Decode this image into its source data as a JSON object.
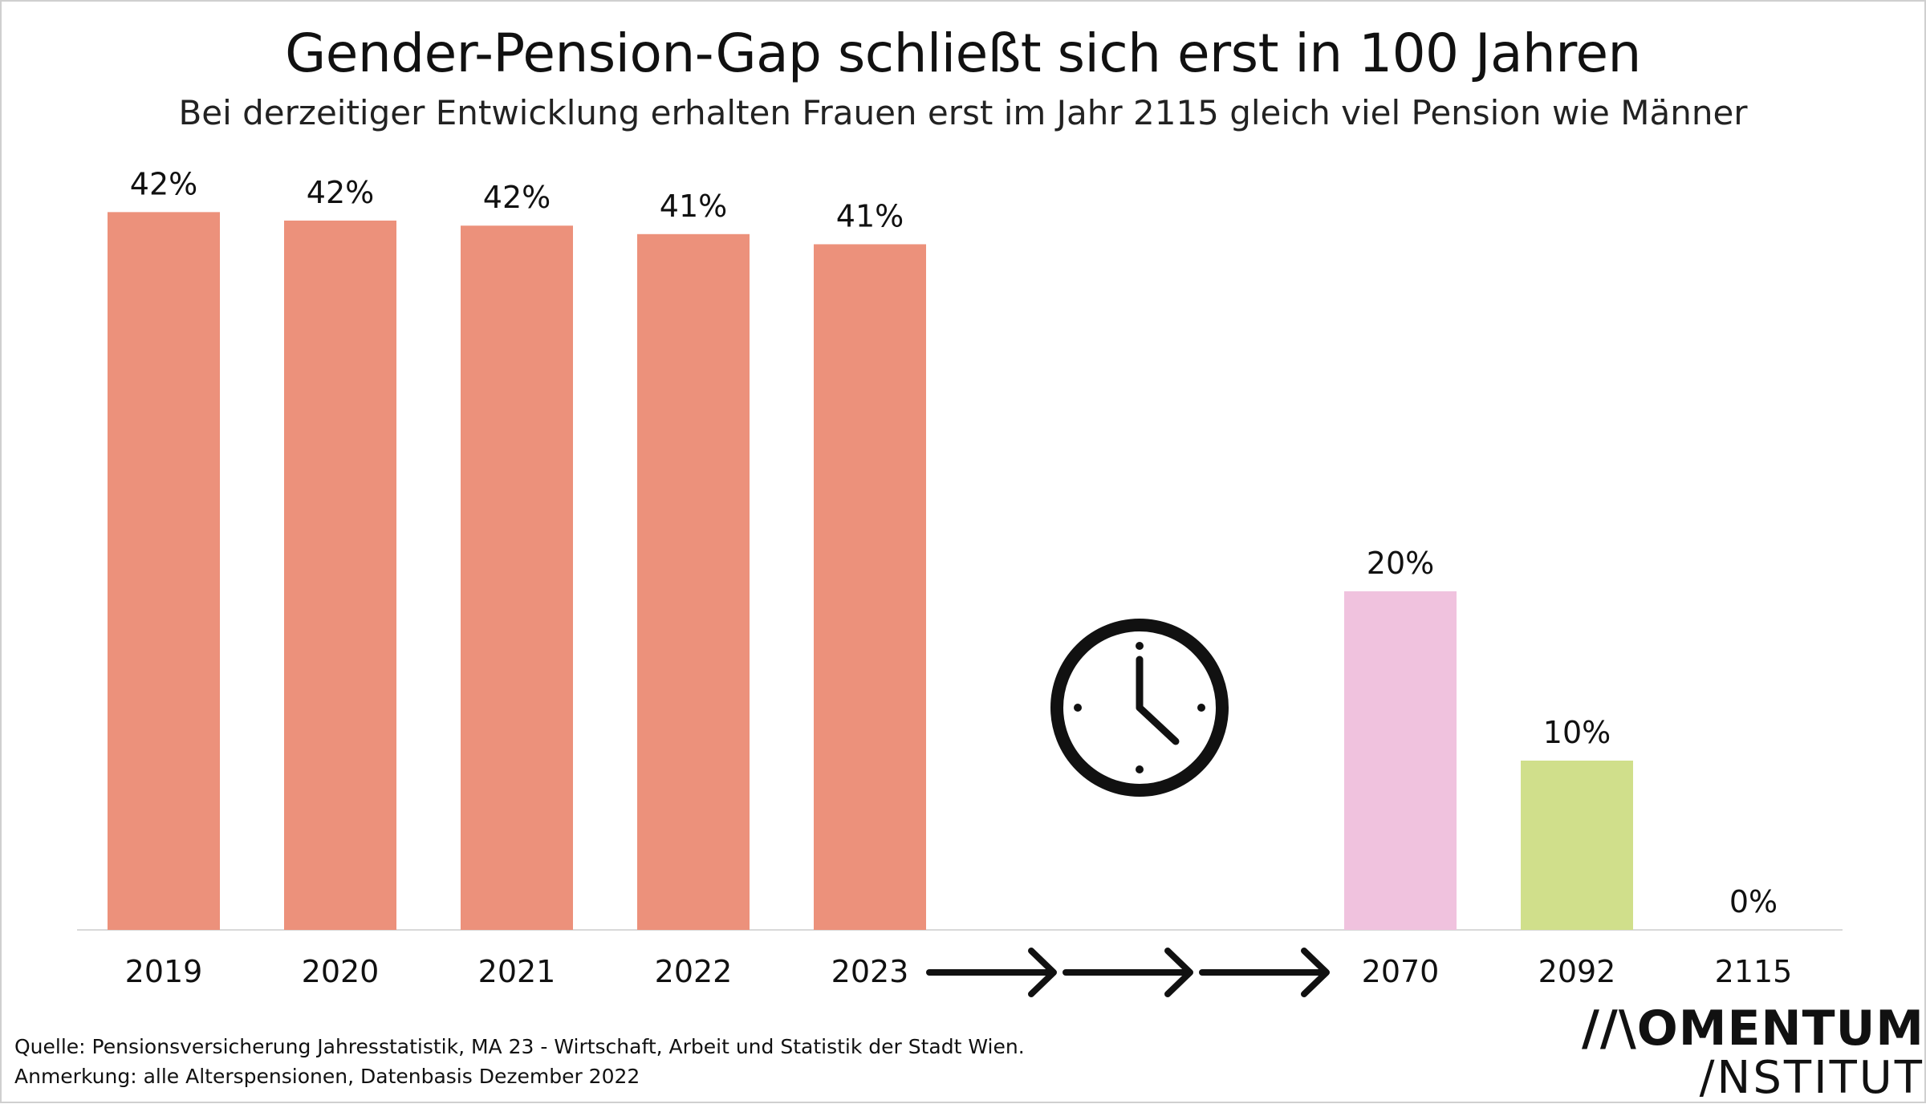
{
  "chart_data": {
    "type": "bar",
    "title": "Gender-Pension-Gap schließt sich erst in 100 Jahren",
    "subtitle": "Bei derzeitiger Entwicklung erhalten Frauen erst im Jahr 2115 gleich viel Pension wie Männer",
    "categories": [
      "2019",
      "2020",
      "2021",
      "2022",
      "2023",
      "2070",
      "2092",
      "2115"
    ],
    "values": [
      42.4,
      41.9,
      41.6,
      41.1,
      40.5,
      20,
      10,
      0
    ],
    "data_labels": [
      "42%",
      "42%",
      "42%",
      "41%",
      "41%",
      "20%",
      "10%",
      "0%"
    ],
    "bar_colors": [
      "#ec917b",
      "#ec917b",
      "#ec917b",
      "#ec917b",
      "#ec917b",
      "#f0c2de",
      "#d0df8b",
      "#ec917b"
    ],
    "xlabel": "",
    "ylabel": "",
    "ylim": [
      0,
      50
    ],
    "grid": false,
    "legend": "none"
  },
  "icons": {
    "clock": "clock-icon",
    "arrow": "arrow-right-icon"
  },
  "footer": {
    "source": "Quelle: Pensionsversicherung Jahresstatistik, MA 23 - Wirtschaft, Arbeit und Statistik der Stadt Wien.",
    "remark": "Anmerkung: alle Alterspensionen, Datenbasis Dezember 2022"
  },
  "logo": {
    "line1": "//\\OMENTUM",
    "line2": "/NSTITUT"
  }
}
